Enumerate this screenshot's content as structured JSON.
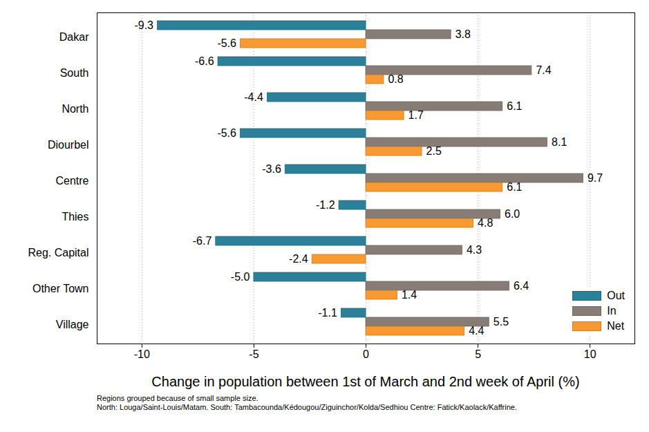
{
  "chart_data": {
    "type": "bar",
    "orientation": "horizontal",
    "x_label": "Change in population between 1st of March and 2nd week of April (%)",
    "notes": [
      "Regions grouped because of small sample size.",
      "North: Louga/Saint-Louis/Matam. South: Tambacounda/Kédougou/Ziguinchor/Kolda/Sedhiou Centre: Fatick/Kaolack/Kaffrine."
    ],
    "categories": [
      "Dakar",
      "South",
      "North",
      "Diourbel",
      "Centre",
      "Thies",
      "Reg. Capital",
      "Other Town",
      "Village"
    ],
    "series": [
      {
        "name": "Out",
        "color": "#2b8199",
        "values": [
          -9.3,
          -6.6,
          -4.4,
          -5.6,
          -3.6,
          -1.2,
          -6.7,
          -5.0,
          -1.1
        ],
        "value_labels": [
          "-9.3",
          "-6.6",
          "-4.4",
          "-5.6",
          "-3.6",
          "-1.2",
          "-6.7",
          "-5.0",
          "-1.1"
        ]
      },
      {
        "name": "In",
        "color": "#877d76",
        "values": [
          3.8,
          7.4,
          6.1,
          8.1,
          9.7,
          6.0,
          4.3,
          6.4,
          5.5
        ],
        "value_labels": [
          "3.8",
          "7.4",
          "6.1",
          "8.1",
          "9.7",
          "6.0",
          "4.3",
          "6.4",
          "5.5"
        ]
      },
      {
        "name": "Net",
        "color": "#f79a31",
        "values": [
          -5.6,
          0.8,
          1.7,
          2.5,
          6.1,
          4.8,
          -2.4,
          1.4,
          4.4
        ],
        "value_labels": [
          "-5.6",
          "0.8",
          "1.7",
          "2.5",
          "6.1",
          "4.8",
          "-2.4",
          "1.4",
          "4.4"
        ]
      }
    ],
    "xlim": [
      -12,
      12
    ],
    "xticks": [
      -10,
      -5,
      0,
      5,
      10
    ],
    "grid": true,
    "legend": "lower right",
    "data_labels": true
  }
}
